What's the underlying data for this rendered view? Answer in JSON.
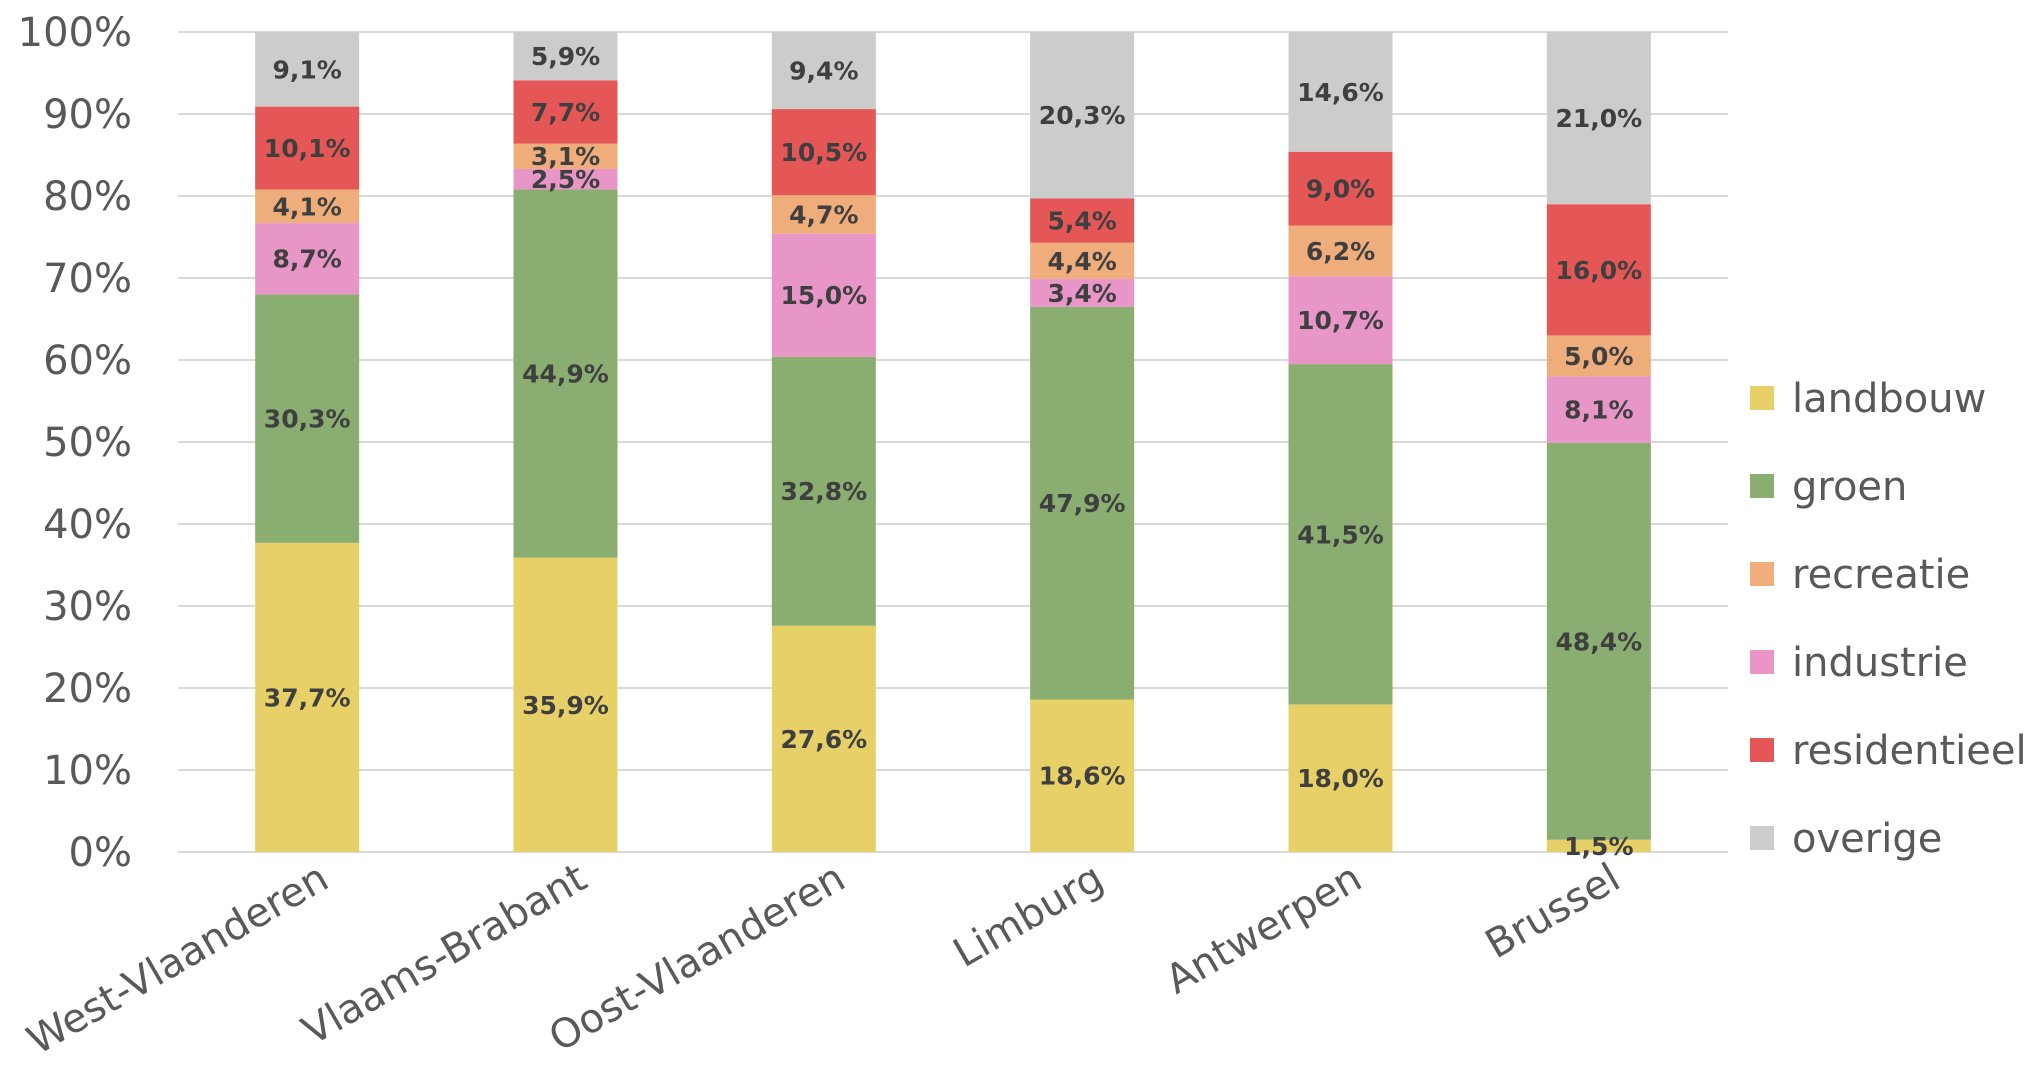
{
  "chart_data": {
    "type": "bar",
    "stacked": true,
    "categories": [
      "West-Vlaanderen",
      "Vlaams-Brabant",
      "Oost-Vlaanderen",
      "Limburg",
      "Antwerpen",
      "Brussel"
    ],
    "ylim": [
      0,
      100
    ],
    "yticks": [
      "0%",
      "10%",
      "20%",
      "30%",
      "40%",
      "50%",
      "60%",
      "70%",
      "80%",
      "90%",
      "100%"
    ],
    "grid": true,
    "legend_position": "right",
    "series": [
      {
        "name": "landbouw",
        "color": "#e8d068",
        "values": [
          37.7,
          35.9,
          27.6,
          18.6,
          18.0,
          1.5
        ],
        "labels": [
          "37,7%",
          "35,9%",
          "27,6%",
          "18,6%",
          "18,0%",
          "1,5%"
        ]
      },
      {
        "name": "groen",
        "color": "#8aad72",
        "values": [
          30.3,
          44.9,
          32.8,
          47.9,
          41.5,
          48.4
        ],
        "labels": [
          "30,3%",
          "44,9%",
          "32,8%",
          "47,9%",
          "41,5%",
          "48,4%"
        ]
      },
      {
        "name": "industrie",
        "color": "#e895c8",
        "values": [
          8.7,
          2.5,
          15.0,
          3.4,
          10.7,
          8.1
        ],
        "labels": [
          "8,7%",
          "2,5%",
          "15,0%",
          "3,4%",
          "10,7%",
          "8,1%"
        ]
      },
      {
        "name": "recreatie",
        "color": "#eead7a",
        "values": [
          4.1,
          3.1,
          4.7,
          4.4,
          6.2,
          5.0
        ],
        "labels": [
          "4,1%",
          "3,1%",
          "4,7%",
          "4,4%",
          "6,2%",
          "5,0%"
        ]
      },
      {
        "name": "residentieel",
        "color": "#e55656",
        "values": [
          10.1,
          7.7,
          10.5,
          5.4,
          9.0,
          16.0
        ],
        "labels": [
          "10,1%",
          "7,7%",
          "10,5%",
          "5,4%",
          "9,0%",
          "16,0%"
        ]
      },
      {
        "name": "overige",
        "color": "#cccccc",
        "values": [
          9.1,
          5.9,
          9.4,
          20.3,
          14.6,
          21.0
        ],
        "labels": [
          "9,1%",
          "5,9%",
          "9,4%",
          "20,3%",
          "14,6%",
          "21,0%"
        ]
      }
    ],
    "legend_order": [
      "landbouw",
      "groen",
      "recreatie",
      "industrie",
      "residentieel",
      "overige"
    ]
  }
}
